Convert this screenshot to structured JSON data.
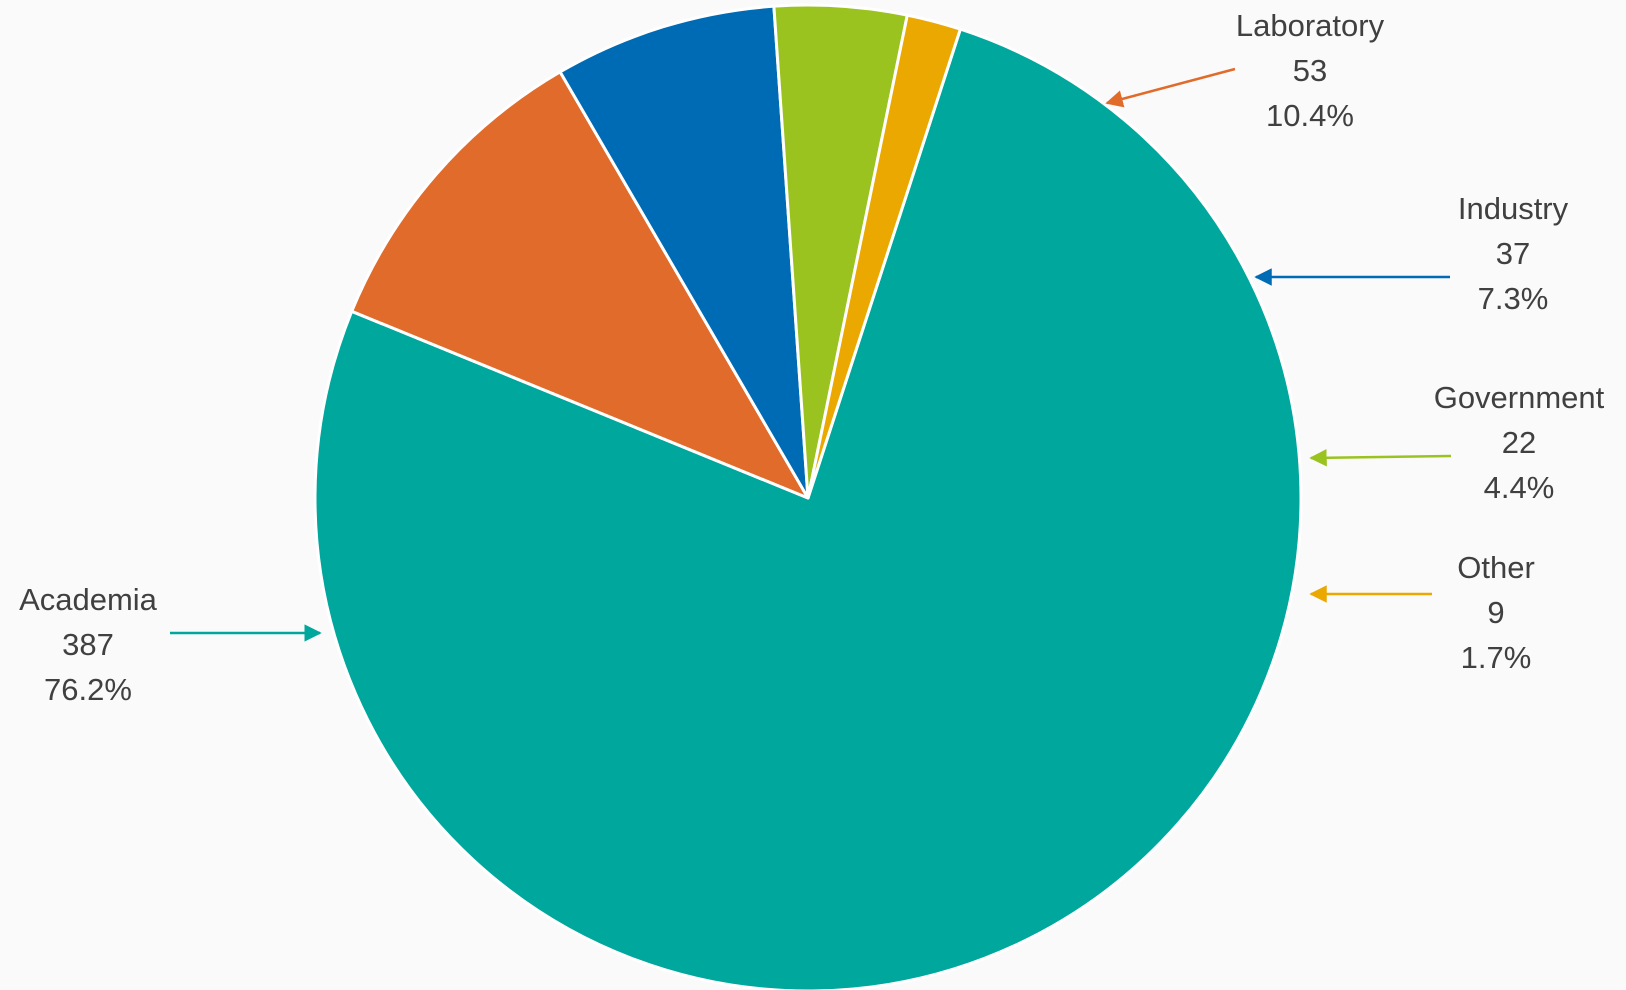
{
  "chart_data": {
    "type": "pie",
    "slices": [
      {
        "label": "Academia",
        "value": 387,
        "percent_label": "76.2%",
        "color": "#00a79d"
      },
      {
        "label": "Laboratory",
        "value": 53,
        "percent_label": "10.4%",
        "color": "#e06b2b"
      },
      {
        "label": "Industry",
        "value": 37,
        "percent_label": "7.3%",
        "color": "#006bb5"
      },
      {
        "label": "Government",
        "value": 22,
        "percent_label": "4.4%",
        "color": "#9bc31f"
      },
      {
        "label": "Other",
        "value": 9,
        "percent_label": "1.7%",
        "color": "#eaa800"
      }
    ],
    "start_angle_deg": 18,
    "direction": "clockwise",
    "legend": "none",
    "data_labels": "outside-with-arrows"
  }
}
